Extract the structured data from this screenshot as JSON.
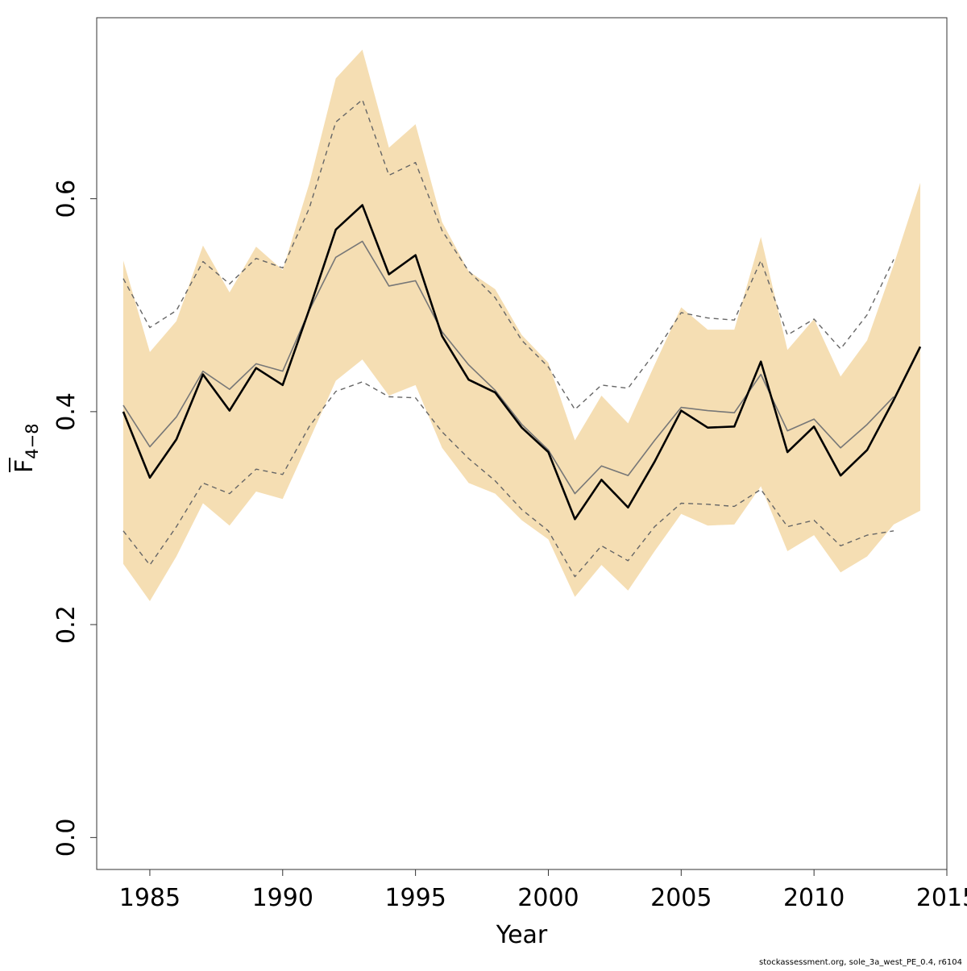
{
  "chart_data": {
    "type": "line",
    "title": "",
    "xlabel": "Year",
    "ylabel": {
      "main": "F",
      "subscript": "4−8"
    },
    "xlim": [
      1983,
      2015
    ],
    "ylim": [
      -0.03,
      0.77
    ],
    "x_ticks": [
      {
        "value": 1985,
        "label": "1985"
      },
      {
        "value": 1990,
        "label": "1990"
      },
      {
        "value": 1995,
        "label": "1995"
      },
      {
        "value": 2000,
        "label": "2000"
      },
      {
        "value": 2005,
        "label": "2005"
      },
      {
        "value": 2010,
        "label": "2010"
      },
      {
        "value": 2015,
        "label": "2015"
      }
    ],
    "y_ticks": [
      {
        "value": 0.0,
        "label": "0.0"
      },
      {
        "value": 0.2,
        "label": "0.2"
      },
      {
        "value": 0.4,
        "label": "0.4"
      },
      {
        "value": 0.6,
        "label": "0.6"
      }
    ],
    "grid": false,
    "legend": "none",
    "colors": {
      "band": "#F5DEB3",
      "main_line": "#000000",
      "alt_line": "#777777",
      "bound_lines": "#666666"
    },
    "band": {
      "x": [
        1984,
        1985,
        1986,
        1987,
        1988,
        1989,
        1990,
        1991,
        1992,
        1993,
        1994,
        1995,
        1996,
        1997,
        1998,
        1999,
        2000,
        2001,
        2002,
        2003,
        2004,
        2005,
        2006,
        2007,
        2008,
        2009,
        2010,
        2011,
        2012,
        2013,
        2014
      ],
      "upper": [
        0.542,
        0.456,
        0.485,
        0.556,
        0.512,
        0.555,
        0.533,
        0.614,
        0.713,
        0.74,
        0.648,
        0.67,
        0.578,
        0.532,
        0.515,
        0.472,
        0.446,
        0.373,
        0.415,
        0.389,
        0.444,
        0.498,
        0.477,
        0.477,
        0.564,
        0.458,
        0.487,
        0.433,
        0.467,
        0.538,
        0.615
      ],
      "lower": [
        0.257,
        0.222,
        0.264,
        0.314,
        0.293,
        0.325,
        0.318,
        0.373,
        0.429,
        0.449,
        0.415,
        0.425,
        0.366,
        0.333,
        0.323,
        0.298,
        0.28,
        0.226,
        0.256,
        0.232,
        0.269,
        0.304,
        0.293,
        0.294,
        0.33,
        0.269,
        0.284,
        0.249,
        0.264,
        0.294,
        0.307
      ]
    },
    "series": [
      {
        "role": "main",
        "x": [
          1984,
          1985,
          1986,
          1987,
          1988,
          1989,
          1990,
          1991,
          1992,
          1993,
          1994,
          1995,
          1996,
          1997,
          1998,
          1999,
          2000,
          2001,
          2002,
          2003,
          2004,
          2005,
          2006,
          2007,
          2008,
          2009,
          2010,
          2011,
          2012,
          2013,
          2014
        ],
        "values": [
          0.4,
          0.338,
          0.374,
          0.435,
          0.401,
          0.441,
          0.425,
          0.496,
          0.571,
          0.594,
          0.529,
          0.547,
          0.471,
          0.43,
          0.418,
          0.385,
          0.362,
          0.299,
          0.336,
          0.31,
          0.353,
          0.401,
          0.385,
          0.386,
          0.447,
          0.362,
          0.386,
          0.34,
          0.364,
          0.411,
          0.461
        ]
      },
      {
        "role": "alt",
        "x": [
          1984,
          1985,
          1986,
          1987,
          1988,
          1989,
          1990,
          1991,
          1992,
          1993,
          1994,
          1995,
          1996,
          1997,
          1998,
          1999,
          2000,
          2001,
          2002,
          2003,
          2004,
          2005,
          2006,
          2007,
          2008,
          2009,
          2010,
          2011,
          2012,
          2013
        ],
        "values": [
          0.406,
          0.367,
          0.395,
          0.438,
          0.421,
          0.445,
          0.438,
          0.495,
          0.545,
          0.56,
          0.518,
          0.523,
          0.475,
          0.444,
          0.42,
          0.388,
          0.364,
          0.323,
          0.349,
          0.34,
          0.373,
          0.404,
          0.401,
          0.399,
          0.435,
          0.382,
          0.393,
          0.366,
          0.388,
          0.414
        ]
      },
      {
        "role": "upper-bound",
        "dashed": true,
        "x": [
          1984,
          1985,
          1986,
          1987,
          1988,
          1989,
          1990,
          1991,
          1992,
          1993,
          1994,
          1995,
          1996,
          1997,
          1998,
          1999,
          2000,
          2001,
          2002,
          2003,
          2004,
          2005,
          2006,
          2007,
          2008,
          2009,
          2010,
          2011,
          2012,
          2013
        ],
        "values": [
          0.525,
          0.479,
          0.495,
          0.541,
          0.52,
          0.544,
          0.535,
          0.591,
          0.672,
          0.693,
          0.622,
          0.634,
          0.57,
          0.532,
          0.507,
          0.467,
          0.442,
          0.402,
          0.425,
          0.422,
          0.455,
          0.493,
          0.488,
          0.486,
          0.542,
          0.472,
          0.487,
          0.459,
          0.491,
          0.543
        ]
      },
      {
        "role": "lower-bound",
        "dashed": true,
        "x": [
          1984,
          1985,
          1986,
          1987,
          1988,
          1989,
          1990,
          1991,
          1992,
          1993,
          1994,
          1995,
          1996,
          1997,
          1998,
          1999,
          2000,
          2001,
          2002,
          2003,
          2004,
          2005,
          2006,
          2007,
          2008,
          2009,
          2010,
          2011,
          2012,
          2013
        ],
        "values": [
          0.288,
          0.256,
          0.292,
          0.333,
          0.323,
          0.346,
          0.341,
          0.386,
          0.419,
          0.428,
          0.414,
          0.413,
          0.381,
          0.356,
          0.335,
          0.308,
          0.288,
          0.245,
          0.274,
          0.26,
          0.292,
          0.314,
          0.313,
          0.311,
          0.327,
          0.292,
          0.298,
          0.274,
          0.284,
          0.288
        ]
      }
    ]
  },
  "footer": "stockassessment.org, sole_3a_west_PE_0.4, r6104"
}
